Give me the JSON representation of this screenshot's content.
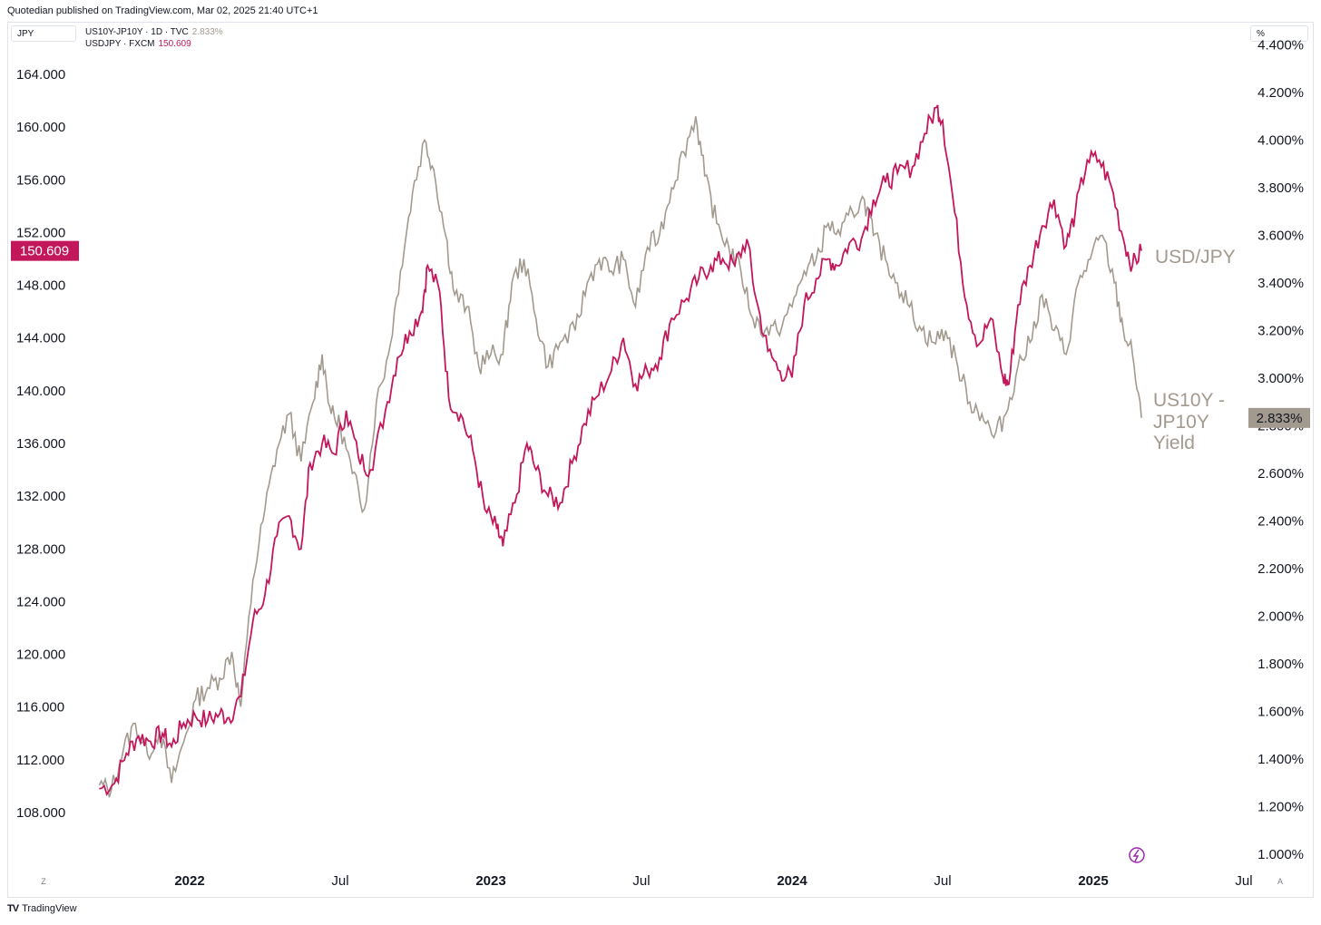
{
  "header": {
    "text": "Quotedian published on TradingView.com, Mar 02, 2025 21:40 UTC+1"
  },
  "left_scale_button": "JPY",
  "right_scale_button": "%",
  "legend": [
    {
      "label": "US10Y-JP10Y · 1D · TVC",
      "value": "2.833%",
      "color": "#a39a8f"
    },
    {
      "label": "USDJPY · FXCM",
      "value": "150.609",
      "color": "#c2185b"
    }
  ],
  "footer": {
    "logo": "TV",
    "brand": "TradingView"
  },
  "corner_buttons": {
    "left": "Z",
    "right": "A"
  },
  "chart_data": {
    "type": "line",
    "left_axis": {
      "ticks": [
        "164.000",
        "160.000",
        "156.000",
        "152.000",
        "148.000",
        "144.000",
        "140.000",
        "136.000",
        "132.000",
        "128.000",
        "124.000",
        "120.000",
        "116.000",
        "112.000",
        "108.000"
      ],
      "range": [
        104.0,
        166.0
      ]
    },
    "right_axis": {
      "ticks": [
        "4.400%",
        "4.200%",
        "4.000%",
        "3.800%",
        "3.600%",
        "3.400%",
        "3.200%",
        "3.000%",
        "2.800%",
        "2.600%",
        "2.400%",
        "2.200%",
        "2.000%",
        "1.800%",
        "1.600%",
        "1.400%",
        "1.200%",
        "1.000%"
      ],
      "range": [
        0.95,
        4.45
      ]
    },
    "x_ticks": [
      {
        "label": "2022",
        "year": true,
        "t": 2022.0
      },
      {
        "label": "Jul",
        "year": false,
        "t": 2022.5
      },
      {
        "label": "2023",
        "year": true,
        "t": 2023.0
      },
      {
        "label": "Jul",
        "year": false,
        "t": 2023.5
      },
      {
        "label": "2024",
        "year": true,
        "t": 2024.0
      },
      {
        "label": "Jul",
        "year": false,
        "t": 2024.5
      },
      {
        "label": "2025",
        "year": true,
        "t": 2025.0
      },
      {
        "label": "Jul",
        "year": false,
        "t": 2025.5
      }
    ],
    "series": [
      {
        "name": "USDJPY · FXCM",
        "axis": "left",
        "color": "#c2185b",
        "last_value": "150.609",
        "points": [
          [
            2021.7,
            109.8
          ],
          [
            2021.75,
            110.2
          ],
          [
            2021.79,
            112.5
          ],
          [
            2021.83,
            113.8
          ],
          [
            2021.87,
            113.4
          ],
          [
            2021.91,
            114.0
          ],
          [
            2021.94,
            113.0
          ],
          [
            2021.98,
            114.8
          ],
          [
            2022.02,
            115.3
          ],
          [
            2022.06,
            115.0
          ],
          [
            2022.1,
            115.5
          ],
          [
            2022.13,
            115.2
          ],
          [
            2022.17,
            116.8
          ],
          [
            2022.21,
            122.5
          ],
          [
            2022.25,
            124.5
          ],
          [
            2022.29,
            129.0
          ],
          [
            2022.33,
            130.5
          ],
          [
            2022.37,
            128.0
          ],
          [
            2022.4,
            134.5
          ],
          [
            2022.44,
            136.0
          ],
          [
            2022.48,
            135.2
          ],
          [
            2022.52,
            138.5
          ],
          [
            2022.56,
            135.0
          ],
          [
            2022.6,
            134.0
          ],
          [
            2022.65,
            138.5
          ],
          [
            2022.69,
            142.5
          ],
          [
            2022.73,
            144.5
          ],
          [
            2022.77,
            146.0
          ],
          [
            2022.79,
            149.5
          ],
          [
            2022.83,
            147.5
          ],
          [
            2022.86,
            139.5
          ],
          [
            2022.9,
            138.2
          ],
          [
            2022.94,
            135.5
          ],
          [
            2022.98,
            131.0
          ],
          [
            2023.02,
            129.5
          ],
          [
            2023.04,
            128.2
          ],
          [
            2023.08,
            131.5
          ],
          [
            2023.12,
            136.0
          ],
          [
            2023.15,
            134.0
          ],
          [
            2023.19,
            132.0
          ],
          [
            2023.23,
            131.5
          ],
          [
            2023.27,
            134.5
          ],
          [
            2023.31,
            137.5
          ],
          [
            2023.35,
            139.5
          ],
          [
            2023.4,
            141.5
          ],
          [
            2023.44,
            144.0
          ],
          [
            2023.48,
            140.5
          ],
          [
            2023.52,
            141.5
          ],
          [
            2023.56,
            142.5
          ],
          [
            2023.6,
            145.5
          ],
          [
            2023.65,
            147.0
          ],
          [
            2023.69,
            148.5
          ],
          [
            2023.73,
            149.5
          ],
          [
            2023.77,
            150.0
          ],
          [
            2023.81,
            149.5
          ],
          [
            2023.85,
            151.5
          ],
          [
            2023.88,
            147.0
          ],
          [
            2023.92,
            143.0
          ],
          [
            2023.96,
            141.5
          ],
          [
            2024.0,
            141.0
          ],
          [
            2024.04,
            146.5
          ],
          [
            2024.08,
            148.5
          ],
          [
            2024.12,
            150.0
          ],
          [
            2024.15,
            149.5
          ],
          [
            2024.19,
            151.2
          ],
          [
            2024.23,
            151.5
          ],
          [
            2024.27,
            154.5
          ],
          [
            2024.31,
            155.8
          ],
          [
            2024.35,
            156.5
          ],
          [
            2024.4,
            157.0
          ],
          [
            2024.44,
            159.5
          ],
          [
            2024.48,
            161.5
          ],
          [
            2024.5,
            160.5
          ],
          [
            2024.54,
            153.5
          ],
          [
            2024.58,
            146.5
          ],
          [
            2024.62,
            143.5
          ],
          [
            2024.66,
            145.5
          ],
          [
            2024.7,
            141.0
          ],
          [
            2024.72,
            140.5
          ],
          [
            2024.75,
            146.5
          ],
          [
            2024.79,
            149.5
          ],
          [
            2024.83,
            152.5
          ],
          [
            2024.87,
            154.5
          ],
          [
            2024.91,
            151.0
          ],
          [
            2024.94,
            153.5
          ],
          [
            2024.98,
            157.5
          ],
          [
            2025.02,
            157.5
          ],
          [
            2025.06,
            155.5
          ],
          [
            2025.1,
            151.5
          ],
          [
            2025.13,
            149.5
          ],
          [
            2025.16,
            150.609
          ]
        ]
      },
      {
        "name": "US10Y-JP10Y · 1D · TVC",
        "axis": "right",
        "color": "#a39a8f",
        "last_value": "2.833%",
        "points": [
          [
            2021.7,
            1.29
          ],
          [
            2021.74,
            1.27
          ],
          [
            2021.78,
            1.44
          ],
          [
            2021.82,
            1.55
          ],
          [
            2021.86,
            1.42
          ],
          [
            2021.9,
            1.52
          ],
          [
            2021.94,
            1.3
          ],
          [
            2021.98,
            1.47
          ],
          [
            2022.02,
            1.65
          ],
          [
            2022.06,
            1.7
          ],
          [
            2022.1,
            1.74
          ],
          [
            2022.14,
            1.85
          ],
          [
            2022.17,
            1.62
          ],
          [
            2022.21,
            2.15
          ],
          [
            2022.25,
            2.45
          ],
          [
            2022.29,
            2.7
          ],
          [
            2022.33,
            2.85
          ],
          [
            2022.37,
            2.65
          ],
          [
            2022.41,
            2.9
          ],
          [
            2022.44,
            3.1
          ],
          [
            2022.47,
            2.85
          ],
          [
            2022.5,
            2.8
          ],
          [
            2022.54,
            2.6
          ],
          [
            2022.58,
            2.45
          ],
          [
            2022.62,
            2.9
          ],
          [
            2022.66,
            3.1
          ],
          [
            2022.7,
            3.45
          ],
          [
            2022.74,
            3.78
          ],
          [
            2022.78,
            4.0
          ],
          [
            2022.81,
            3.88
          ],
          [
            2022.85,
            3.6
          ],
          [
            2022.88,
            3.35
          ],
          [
            2022.92,
            3.3
          ],
          [
            2022.96,
            3.05
          ],
          [
            2023.0,
            3.1
          ],
          [
            2023.04,
            3.1
          ],
          [
            2023.07,
            3.4
          ],
          [
            2023.11,
            3.5
          ],
          [
            2023.15,
            3.25
          ],
          [
            2023.19,
            3.05
          ],
          [
            2023.23,
            3.15
          ],
          [
            2023.28,
            3.2
          ],
          [
            2023.32,
            3.4
          ],
          [
            2023.36,
            3.5
          ],
          [
            2023.4,
            3.45
          ],
          [
            2023.44,
            3.5
          ],
          [
            2023.48,
            3.3
          ],
          [
            2023.52,
            3.55
          ],
          [
            2023.56,
            3.6
          ],
          [
            2023.6,
            3.8
          ],
          [
            2023.64,
            3.95
          ],
          [
            2023.68,
            4.1
          ],
          [
            2023.71,
            3.85
          ],
          [
            2023.75,
            3.65
          ],
          [
            2023.79,
            3.55
          ],
          [
            2023.83,
            3.45
          ],
          [
            2023.87,
            3.25
          ],
          [
            2023.91,
            3.2
          ],
          [
            2023.95,
            3.2
          ],
          [
            2024.0,
            3.3
          ],
          [
            2024.04,
            3.45
          ],
          [
            2024.08,
            3.5
          ],
          [
            2024.12,
            3.65
          ],
          [
            2024.16,
            3.6
          ],
          [
            2024.2,
            3.7
          ],
          [
            2024.24,
            3.75
          ],
          [
            2024.27,
            3.6
          ],
          [
            2024.31,
            3.5
          ],
          [
            2024.35,
            3.4
          ],
          [
            2024.39,
            3.3
          ],
          [
            2024.43,
            3.2
          ],
          [
            2024.47,
            3.15
          ],
          [
            2024.51,
            3.2
          ],
          [
            2024.55,
            3.05
          ],
          [
            2024.59,
            2.9
          ],
          [
            2024.63,
            2.85
          ],
          [
            2024.67,
            2.75
          ],
          [
            2024.71,
            2.85
          ],
          [
            2024.75,
            3.05
          ],
          [
            2024.79,
            3.15
          ],
          [
            2024.83,
            3.35
          ],
          [
            2024.87,
            3.2
          ],
          [
            2024.91,
            3.1
          ],
          [
            2024.95,
            3.4
          ],
          [
            2024.99,
            3.5
          ],
          [
            2025.03,
            3.6
          ],
          [
            2025.07,
            3.4
          ],
          [
            2025.1,
            3.2
          ],
          [
            2025.13,
            3.1
          ],
          [
            2025.16,
            2.833
          ]
        ]
      }
    ],
    "annotations": [
      {
        "text": "USD/JPY",
        "series": "USDJPY · FXCM"
      },
      {
        "lines": [
          "US10Y -",
          "JP10Y",
          "Yield"
        ],
        "series": "US10Y-JP10Y · 1D · TVC"
      }
    ]
  }
}
